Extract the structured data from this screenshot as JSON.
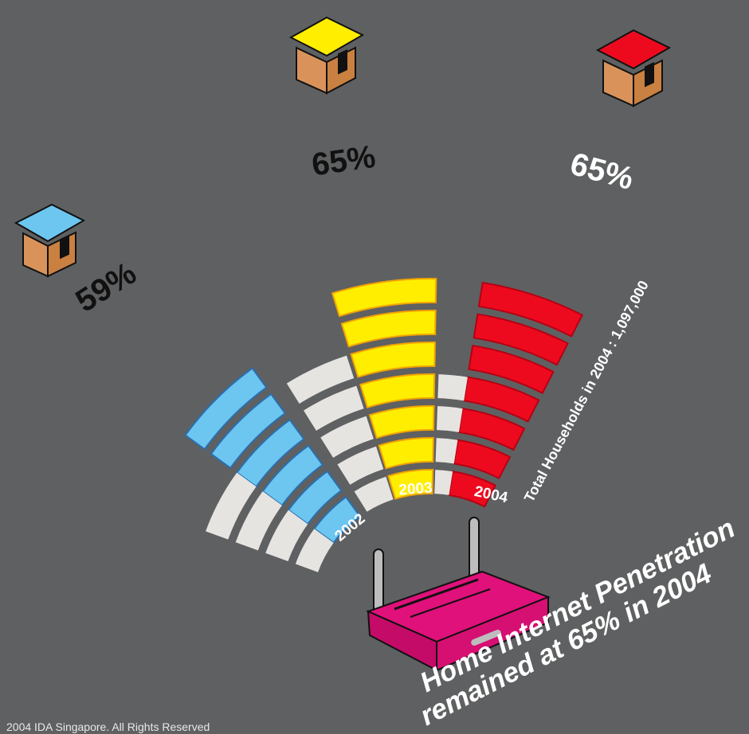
{
  "chart_data": {
    "type": "bar",
    "title": "",
    "categories": [
      "2002",
      "2003",
      "2004"
    ],
    "values": [
      59,
      65,
      65
    ],
    "value_labels": [
      "59%",
      "65%",
      "65%"
    ],
    "unit": "%",
    "segments_total": 10,
    "colors": {
      "2002": "#6cc6f0",
      "2003": "#ffee00",
      "2004": "#ee0a1e",
      "empty": "#e6e4e1",
      "background": "#5f6061"
    },
    "annotations": {
      "households": "Total Households in 2004 : 1,097,000",
      "headline_line1": "Home Internet Penetration",
      "headline_line2": "remained at 65% in 2004",
      "copyright": "2004 IDA Singapore. All Rights Reserved"
    }
  }
}
